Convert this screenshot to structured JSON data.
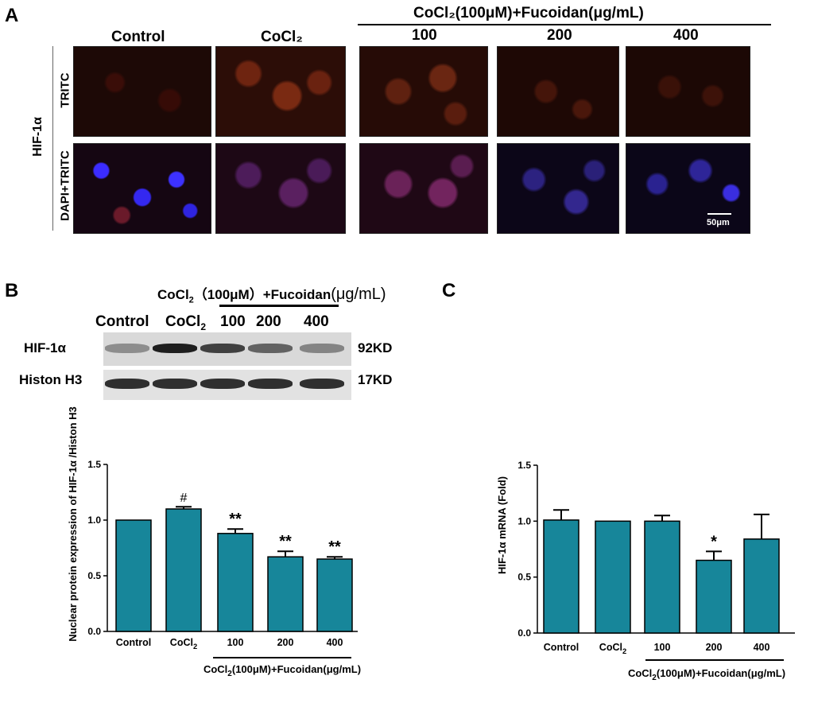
{
  "panel_a": {
    "letter": "A",
    "header": "CoCl₂(100μM)+Fucoidan(μg/mL)",
    "columns": [
      "Control",
      "CoCl₂",
      "100",
      "200",
      "400"
    ],
    "group_label": "HIF-1α",
    "rows": [
      "TRITC",
      "DAPI+TRITC"
    ],
    "scale_bar": "50μm"
  },
  "panel_b_blot": {
    "letter": "B",
    "header_pre": "CoCl",
    "header_sub": "2",
    "header_mid": "（100μM）+Fucoidan",
    "header_post": "(μg/mL)",
    "lanes": [
      "Control",
      "CoCl",
      "100",
      "200",
      "400"
    ],
    "lane_sub": "2",
    "rows": [
      {
        "protein": "HIF-1α",
        "size": "92KD"
      },
      {
        "protein": "Histon H3",
        "size": "17KD"
      }
    ],
    "intensity_hif": [
      0.35,
      1.0,
      0.8,
      0.6,
      0.4
    ],
    "intensity_h3": [
      0.9,
      0.9,
      0.9,
      0.9,
      0.9
    ]
  },
  "panel_c": {
    "letter": "C"
  },
  "colors": {
    "bar": "#17869a",
    "red_stain": "#a8250f",
    "blue_stain": "#2a1fd6"
  },
  "chart_data": [
    {
      "type": "bar",
      "categories": [
        "Control",
        "CoCl2",
        "100",
        "200",
        "400"
      ],
      "category_labels": [
        "Control",
        "CoCl",
        "100",
        "200",
        "400"
      ],
      "label_sub": [
        "",
        "2",
        "",
        "",
        ""
      ],
      "values": [
        1.0,
        1.1,
        0.88,
        0.67,
        0.65
      ],
      "errors": [
        0.0,
        0.02,
        0.04,
        0.05,
        0.02
      ],
      "annotations": [
        "",
        "#",
        "**",
        "**",
        "**"
      ],
      "ylabel": "Nuclear protein expression of HIF-1α /Histon H3",
      "ylim": [
        0,
        1.5
      ],
      "yticks": [
        "0.0",
        "0.5",
        "1.0",
        "1.5"
      ],
      "group_label_pre": "CoCl",
      "group_label_sub": "2",
      "group_label_post": "(100μM)+Fucoidan(μg/mL)"
    },
    {
      "type": "bar",
      "categories": [
        "Control",
        "CoCl2",
        "100",
        "200",
        "400"
      ],
      "category_labels": [
        "Control",
        "CoCl",
        "100",
        "200",
        "400"
      ],
      "label_sub": [
        "",
        "2",
        "",
        "",
        ""
      ],
      "values": [
        1.01,
        1.0,
        1.0,
        0.65,
        0.84
      ],
      "errors": [
        0.09,
        0.0,
        0.05,
        0.08,
        0.22
      ],
      "annotations": [
        "",
        "",
        "",
        "*",
        ""
      ],
      "ylabel": "HIF-1α mRNA (Fold)",
      "ylim": [
        0,
        1.5
      ],
      "yticks": [
        "0.0",
        "0.5",
        "1.0",
        "1.5"
      ],
      "group_label_pre": "CoCl",
      "group_label_sub": "2",
      "group_label_post": "(100μM)+Fucoidan(μg/mL)"
    }
  ]
}
